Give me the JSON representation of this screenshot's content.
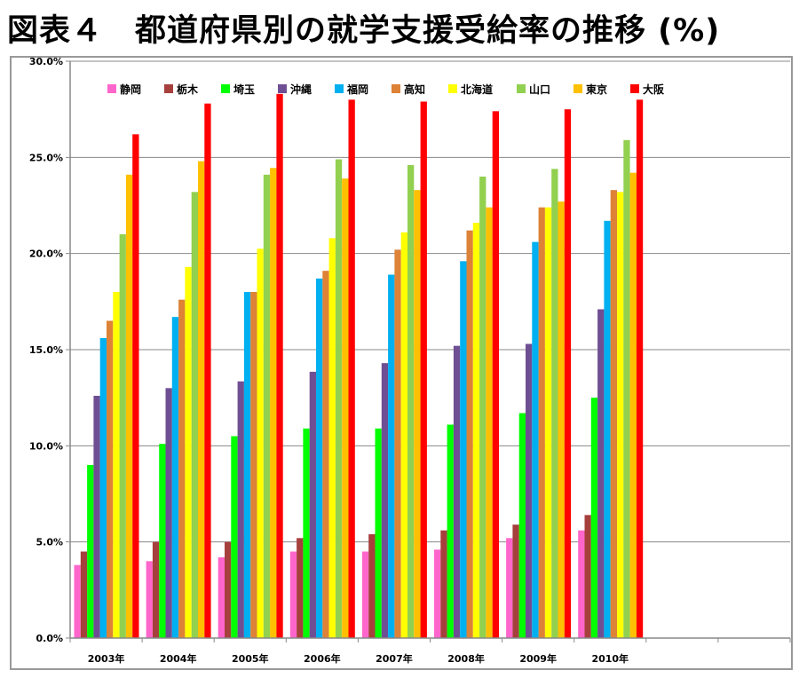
{
  "chart_data": {
    "type": "bar",
    "title": "図表４　都道府県別の就学支援受給率の推移 (%)",
    "xlabel": "",
    "ylabel": "",
    "ylim": [
      0,
      30
    ],
    "yticks": [
      "0.0%",
      "5.0%",
      "10.0%",
      "15.0%",
      "20.0%",
      "25.0%",
      "30.0%"
    ],
    "grid": true,
    "legend_position": "top",
    "categories": [
      "2003年",
      "2004年",
      "2005年",
      "2006年",
      "2007年",
      "2008年",
      "2009年",
      "2010年"
    ],
    "empty_slots": 2,
    "series": [
      {
        "name": "静岡",
        "color": "#ff66cc",
        "values": [
          3.8,
          4.0,
          4.2,
          4.5,
          4.5,
          4.6,
          5.2,
          5.6
        ]
      },
      {
        "name": "栃木",
        "color": "#a5403c",
        "values": [
          4.5,
          5.0,
          5.0,
          5.2,
          5.4,
          5.6,
          5.9,
          6.4
        ]
      },
      {
        "name": "埼玉",
        "color": "#00ff00",
        "values": [
          9.0,
          10.1,
          10.5,
          10.9,
          10.9,
          11.1,
          11.7,
          12.5
        ]
      },
      {
        "name": "沖縄",
        "color": "#6f4f93",
        "values": [
          12.6,
          13.0,
          13.35,
          13.85,
          14.3,
          15.2,
          15.3,
          17.1
        ]
      },
      {
        "name": "福岡",
        "color": "#00b0f0",
        "values": [
          15.6,
          16.7,
          18.0,
          18.7,
          18.9,
          19.6,
          20.6,
          21.7
        ]
      },
      {
        "name": "高知",
        "color": "#dd8237",
        "values": [
          16.5,
          17.6,
          18.0,
          19.1,
          20.2,
          21.2,
          22.4,
          23.3
        ]
      },
      {
        "name": "北海道",
        "color": "#ffff00",
        "values": [
          18.0,
          19.3,
          20.25,
          20.8,
          21.1,
          21.6,
          22.4,
          23.2
        ]
      },
      {
        "name": "山口",
        "color": "#92d050",
        "values": [
          21.0,
          23.2,
          24.1,
          24.9,
          24.6,
          24.0,
          24.4,
          25.9
        ]
      },
      {
        "name": "東京",
        "color": "#ffc000",
        "values": [
          24.1,
          24.8,
          24.45,
          23.9,
          23.3,
          22.4,
          22.7,
          24.2
        ]
      },
      {
        "name": "大阪",
        "color": "#ff0000",
        "values": [
          26.2,
          27.8,
          28.3,
          28.0,
          27.9,
          27.4,
          27.5,
          28.0
        ]
      }
    ]
  }
}
